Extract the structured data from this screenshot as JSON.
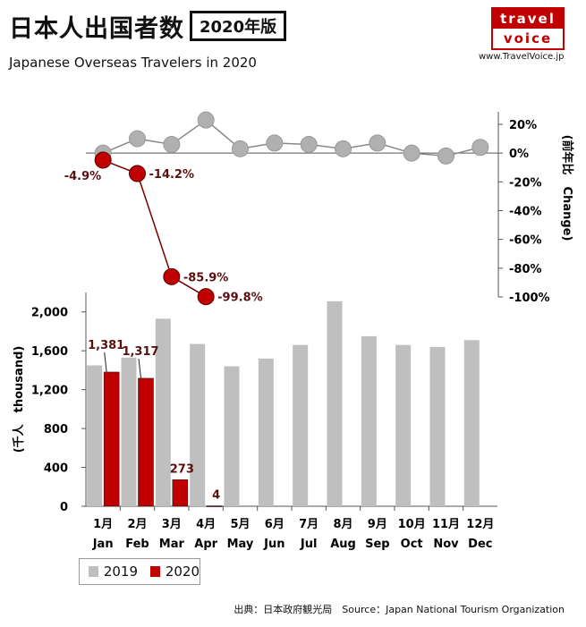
{
  "header": {
    "title": "日本人出国者数",
    "badge": "2020年版",
    "subtitle": "Japanese Overseas Travelers in 2020",
    "logo_top": "travel",
    "logo_bottom": "voice",
    "website": "www.TravelVoice.jp"
  },
  "source": "出典：日本政府観光局　Source：Japan National Tourism Organization",
  "colors": {
    "2019": "#bfbfbf",
    "2020": "#c00000",
    "dot_2019": "#b0b0b0",
    "line_2019": "#888888",
    "line_2020": "#7a0000"
  },
  "chart_data": [
    {
      "type": "bar",
      "ylabel": "(千人　thousand)",
      "ylim": [
        0,
        2200
      ],
      "yticks": [
        0,
        400,
        800,
        1200,
        1600,
        2000
      ],
      "ytick_labels": [
        "0",
        "400",
        "800",
        "1,200",
        "1,600",
        "2,000"
      ],
      "categories": [
        "1月",
        "2月",
        "3月",
        "4月",
        "5月",
        "6月",
        "7月",
        "8月",
        "9月",
        "10月",
        "11月",
        "12月"
      ],
      "categories_en": [
        "Jan",
        "Feb",
        "Mar",
        "Apr",
        "May",
        "Jun",
        "Jul",
        "Aug",
        "Sep",
        "Oct",
        "Nov",
        "Dec"
      ],
      "series": [
        {
          "name": "2019",
          "values": [
            1450,
            1530,
            1930,
            1670,
            1440,
            1520,
            1660,
            2110,
            1750,
            1660,
            1640,
            1710
          ]
        },
        {
          "name": "2020",
          "values": [
            1381,
            1317,
            273,
            4,
            null,
            null,
            null,
            null,
            null,
            null,
            null,
            null
          ],
          "data_labels": [
            "1,381",
            "1,317",
            "273",
            "4"
          ]
        }
      ],
      "legend": {
        "position": "bottom-left",
        "entries": [
          "2019",
          "2020"
        ]
      }
    },
    {
      "type": "line",
      "ylabel": "(前年比　Change)",
      "ylim": [
        -100,
        20
      ],
      "yticks": [
        20,
        0,
        -20,
        -40,
        -60,
        -80,
        -100
      ],
      "ytick_labels": [
        "20%",
        "0%",
        "-20%",
        "-40%",
        "-60%",
        "-80%",
        "-100%"
      ],
      "series": [
        {
          "name": "2019",
          "values": [
            0,
            10,
            6,
            23,
            3,
            7,
            6,
            3,
            7,
            0,
            -2,
            4
          ]
        },
        {
          "name": "2020",
          "values": [
            -4.9,
            -14.2,
            -85.9,
            -99.8
          ],
          "data_labels": [
            "-4.9%",
            "-14.2%",
            "-85.9%",
            "-99.8%"
          ]
        }
      ]
    }
  ]
}
